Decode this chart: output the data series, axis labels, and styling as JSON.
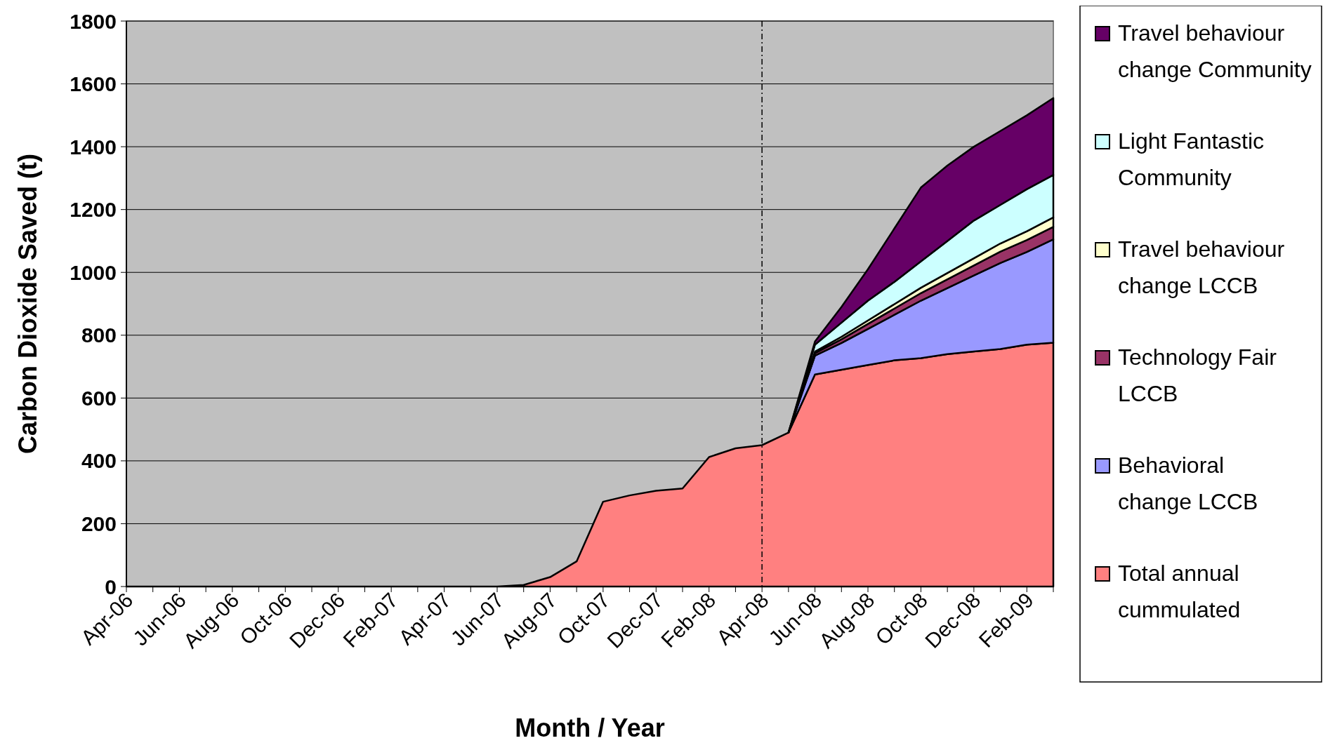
{
  "chart_data": {
    "type": "area",
    "stacked": true,
    "xlabel": "Month / Year",
    "ylabel": "Carbon Dioxide Saved (t)",
    "categories": [
      "Apr-06",
      null,
      "Jun-06",
      null,
      "Aug-06",
      null,
      "Oct-06",
      null,
      "Dec-06",
      null,
      "Feb-07",
      null,
      "Apr-07",
      null,
      "Jun-07",
      null,
      "Aug-07",
      null,
      "Oct-07",
      null,
      "Dec-07",
      null,
      "Feb-08",
      null,
      "Apr-08",
      null,
      "Jun-08",
      null,
      "Aug-08",
      null,
      "Oct-08",
      null,
      "Dec-08",
      null,
      "Feb-09",
      null
    ],
    "series": [
      {
        "name": "Total annual cummulated",
        "color": "#ff8080",
        "values": [
          0,
          0,
          0,
          0,
          0,
          0,
          0,
          0,
          0,
          0,
          0,
          0,
          0,
          0,
          0,
          5,
          30,
          80,
          270,
          290,
          305,
          312,
          412,
          440,
          450,
          490,
          675,
          690,
          705,
          720,
          727,
          740,
          748,
          756,
          770,
          776
        ]
      },
      {
        "name": "Behavioral change LCCB",
        "color": "#9999ff",
        "values": [
          null,
          null,
          null,
          null,
          null,
          null,
          null,
          null,
          null,
          null,
          null,
          null,
          null,
          null,
          null,
          null,
          null,
          null,
          null,
          null,
          null,
          null,
          null,
          null,
          null,
          0,
          60,
          85,
          115,
          145,
          183,
          210,
          242,
          274,
          295,
          329
        ]
      },
      {
        "name": "Technology Fair LCCB",
        "color": "#993366",
        "values": [
          null,
          null,
          null,
          null,
          null,
          null,
          null,
          null,
          null,
          null,
          null,
          null,
          null,
          null,
          null,
          null,
          null,
          null,
          null,
          null,
          null,
          null,
          null,
          null,
          null,
          0,
          8,
          12,
          16,
          20,
          24,
          28,
          32,
          36,
          38,
          40
        ]
      },
      {
        "name": "Travel behaviour change LCCB",
        "color": "#ffffcc",
        "values": [
          null,
          null,
          null,
          null,
          null,
          null,
          null,
          null,
          null,
          null,
          null,
          null,
          null,
          null,
          null,
          null,
          null,
          null,
          null,
          null,
          null,
          null,
          null,
          null,
          null,
          0,
          5,
          8,
          11,
          14,
          17,
          20,
          23,
          26,
          28,
          30
        ]
      },
      {
        "name": "Light Fantastic Community",
        "color": "#ccffff",
        "values": [
          null,
          null,
          null,
          null,
          null,
          null,
          null,
          null,
          null,
          null,
          null,
          null,
          null,
          null,
          null,
          null,
          null,
          null,
          null,
          null,
          null,
          null,
          null,
          null,
          null,
          0,
          22,
          45,
          63,
          71,
          84,
          102,
          120,
          123,
          134,
          135
        ]
      },
      {
        "name": "Travel behaviour change Community",
        "color": "#660066",
        "values": [
          null,
          null,
          null,
          null,
          null,
          null,
          null,
          null,
          null,
          null,
          null,
          null,
          null,
          null,
          null,
          null,
          null,
          null,
          null,
          null,
          null,
          null,
          null,
          null,
          null,
          0,
          10,
          50,
          100,
          170,
          235,
          240,
          235,
          235,
          235,
          245
        ]
      }
    ],
    "ylim": [
      0,
      1800
    ],
    "yticks": [
      0,
      200,
      400,
      600,
      800,
      1000,
      1200,
      1400,
      1600,
      1800
    ],
    "grid": "y",
    "legend": "right",
    "ref_lines": [
      {
        "axis": "x",
        "value": "Apr-08",
        "line_style": "dashed",
        "color": "#000000"
      }
    ]
  }
}
